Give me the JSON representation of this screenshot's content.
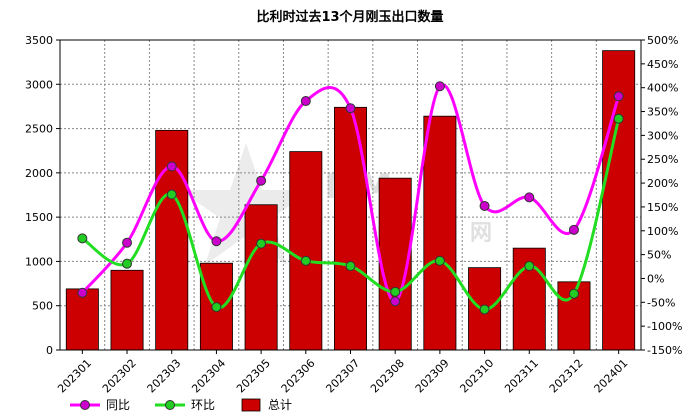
{
  "chart_data": {
    "type": "bar+line",
    "title": "比利时过去13个月刚玉出口数量",
    "categories": [
      "202301",
      "202302",
      "202303",
      "202304",
      "202305",
      "202306",
      "202307",
      "202308",
      "202309",
      "202310",
      "202311",
      "202312",
      "202401"
    ],
    "series": [
      {
        "name": "总计",
        "type": "bar",
        "axis": "left",
        "color": "#cc0000",
        "values": [
          690,
          900,
          2480,
          980,
          1640,
          2240,
          2740,
          1940,
          2640,
          930,
          1150,
          770,
          3380
        ]
      },
      {
        "name": "同比",
        "type": "line",
        "axis": "right",
        "color": "#ff00ff",
        "marker_color": "#cc00cc",
        "values": [
          -30,
          75,
          235,
          78,
          205,
          372,
          357,
          -48,
          403,
          152,
          170,
          102,
          382
        ]
      },
      {
        "name": "环比",
        "type": "line",
        "axis": "right",
        "color": "#22dd22",
        "marker_color": "#22cc22",
        "values": [
          84,
          31,
          176,
          -60,
          73,
          37,
          26,
          -28,
          37,
          -65,
          26,
          -32,
          335
        ]
      }
    ],
    "y_left": {
      "min": 0,
      "max": 3500,
      "ticks": [
        0,
        500,
        1000,
        1500,
        2000,
        2500,
        3000,
        3500
      ]
    },
    "y_right": {
      "min": -150,
      "max": 500,
      "ticks": [
        -150,
        -100,
        -50,
        0,
        50,
        100,
        150,
        200,
        250,
        300,
        350,
        400,
        450,
        500
      ],
      "suffix": "%"
    },
    "grid": true,
    "legend_position": "bottom-left"
  },
  "watermark": {
    "text": "SMM",
    "text2": "网"
  }
}
